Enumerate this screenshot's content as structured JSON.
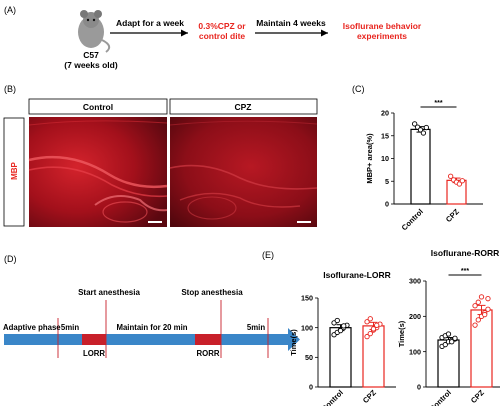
{
  "panels": {
    "A": {
      "letter": "(A)",
      "mouse_line1": "C57",
      "mouse_line2": "(7 weeks old)",
      "step1": "Adapt for a week",
      "step2_line1": "0.3%CPZ or",
      "step2_line2": "control dite",
      "step3": "Maintain 4 weeks",
      "step4_line1": "Isoflurane behavior",
      "step4_line2": "experiments"
    },
    "B": {
      "letter": "(B)",
      "stain_label": "MBP",
      "col_control": "Control",
      "col_cpz": "CPZ"
    },
    "C": {
      "letter": "(C)",
      "sig": "***"
    },
    "D": {
      "letter": "(D)",
      "start": "Start anesthesia",
      "stop": "Stop anesthesia",
      "adaptive": "Adaptive phase",
      "t5a": "5min",
      "lorr": "LORR",
      "maintain": "Maintain for 20 min",
      "rorr": "RORR",
      "t5b": "5min"
    },
    "E": {
      "letter": "(E)"
    }
  },
  "colors": {
    "red": "#e8251f",
    "arrow_blue": "#3a86c8",
    "block_red": "#c8202a",
    "tissue": "#b0121e"
  },
  "chart_data": [
    {
      "id": "C",
      "type": "bar",
      "title": "",
      "ylabel": "MBP+ area(%)",
      "categories": [
        "Control",
        "CPZ"
      ],
      "values": [
        16.4,
        5.2
      ],
      "errors": [
        0.6,
        0.5
      ],
      "points": [
        [
          17.6,
          16.9,
          16.3,
          15.6,
          16.8
        ],
        [
          6.1,
          5.3,
          4.8,
          4.4,
          5.1
        ]
      ],
      "ylim": [
        0,
        20
      ],
      "yticks": [
        "0",
        "5",
        "10",
        "15",
        "20"
      ],
      "significance": "***",
      "bar_colors": [
        "#000000",
        "#e8251f"
      ]
    },
    {
      "id": "E1",
      "type": "bar",
      "title": "Isoflurane-LORR",
      "ylabel": "Time(s)",
      "categories": [
        "Control",
        "CPZ"
      ],
      "values": [
        100,
        103
      ],
      "errors": [
        5,
        6
      ],
      "points": [
        [
          88,
          92,
          96,
          100,
          104,
          108,
          112,
          95,
          103
        ],
        [
          85,
          90,
          96,
          100,
          106,
          110,
          115,
          98,
          104
        ]
      ],
      "ylim": [
        0,
        150
      ],
      "yticks": [
        "0",
        "50",
        "100",
        "150"
      ],
      "bar_colors": [
        "#000000",
        "#e8251f"
      ]
    },
    {
      "id": "E2",
      "type": "bar",
      "title": "Isoflurane-RORR",
      "ylabel": "Time(s)",
      "categories": [
        "Control",
        "CPZ"
      ],
      "values": [
        133,
        218
      ],
      "errors": [
        7,
        13
      ],
      "points": [
        [
          115,
          120,
          128,
          132,
          136,
          140,
          145,
          150,
          128,
          138
        ],
        [
          175,
          190,
          200,
          210,
          220,
          230,
          240,
          255,
          205,
          250
        ]
      ],
      "ylim": [
        0,
        300
      ],
      "yticks": [
        "0",
        "100",
        "200",
        "300"
      ],
      "significance": "***",
      "bar_colors": [
        "#000000",
        "#e8251f"
      ]
    }
  ]
}
